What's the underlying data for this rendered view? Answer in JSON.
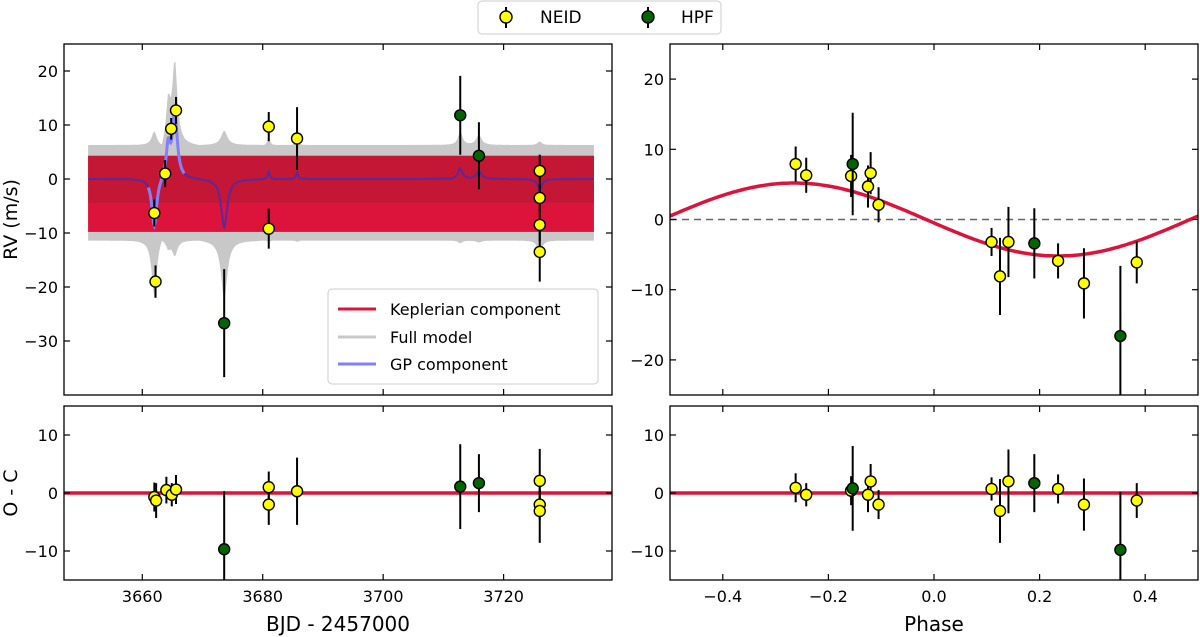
{
  "legend": {
    "items": [
      {
        "label": "NEID",
        "color": "#ffff00"
      },
      {
        "label": "HPF",
        "color": "#006400"
      }
    ]
  },
  "inner_legend": [
    "Keplerian component",
    "Full model",
    "GP component"
  ],
  "colors": {
    "keplerian": "#dc143c",
    "keplerian_band": "#b0172f",
    "full_model": "#c8c8c8",
    "gp": "#8080ff",
    "neid": "#ffff00",
    "hpf": "#006400",
    "zero_line": "#666666"
  },
  "chart_data": [
    {
      "id": "rv_time",
      "type": "scatter",
      "ylabel": "RV (m/s)",
      "xlabel": "",
      "xlim": [
        3647,
        3738
      ],
      "ylim": [
        -40,
        25
      ],
      "yticks": [
        -30,
        -20,
        -10,
        0,
        10,
        20
      ],
      "xticks": [
        3660,
        3680,
        3700,
        3720
      ],
      "show_xticklabels": false,
      "series": [
        {
          "name": "NEID",
          "points": [
            [
              3662,
              -6.3,
              2.5
            ],
            [
              3662.2,
              -19,
              3
            ],
            [
              3663.8,
              1,
              2.5
            ],
            [
              3664.8,
              9.3,
              2
            ],
            [
              3665.6,
              12.7,
              2.5
            ],
            [
              3681,
              9.7,
              2.7
            ],
            [
              3681,
              -9.2,
              3.7
            ],
            [
              3685.7,
              7.5,
              5.8
            ],
            [
              3726,
              1.5,
              3
            ],
            [
              3726,
              -3.5,
              2.5
            ],
            [
              3726,
              -8.5,
              3
            ],
            [
              3726,
              -13.5,
              5.5
            ]
          ]
        },
        {
          "name": "HPF",
          "points": [
            [
              3673.6,
              -26.7,
              10
            ],
            [
              3712.8,
              11.8,
              7.3
            ],
            [
              3715.9,
              4.3,
              6.2
            ]
          ]
        }
      ],
      "band": {
        "x": [
          3651,
          3735
        ],
        "y": [
          -9.8,
          4.3
        ]
      }
    },
    {
      "id": "rv_phase",
      "type": "scatter",
      "ylabel": "",
      "xlabel": "",
      "xlim": [
        -0.5,
        0.5
      ],
      "ylim": [
        -25,
        25
      ],
      "yticks": [
        -20,
        -10,
        0,
        10,
        20
      ],
      "xticks": [
        -0.4,
        -0.2,
        0.0,
        0.2,
        0.4
      ],
      "show_xticklabels": false,
      "model": {
        "amplitude": 5.2,
        "peak_phase": -0.265
      },
      "series": [
        {
          "name": "NEID",
          "points": [
            [
              -0.262,
              7.9,
              2.5
            ],
            [
              -0.242,
              6.3,
              2.5
            ],
            [
              -0.157,
              6.2,
              3
            ],
            [
              -0.125,
              4.7,
              3
            ],
            [
              -0.12,
              6.6,
              3
            ],
            [
              -0.105,
              2.1,
              2.5
            ],
            [
              0.109,
              -3.2,
              2
            ],
            [
              0.125,
              -8.1,
              5.5
            ],
            [
              0.141,
              -3.2,
              5
            ],
            [
              0.235,
              -5.9,
              2.5
            ],
            [
              0.284,
              -9.1,
              5
            ],
            [
              0.384,
              -6.1,
              3
            ]
          ]
        },
        {
          "name": "HPF",
          "points": [
            [
              -0.154,
              7.9,
              7.3
            ],
            [
              0.19,
              -3.4,
              5
            ],
            [
              0.353,
              -16.6,
              10
            ]
          ]
        }
      ]
    },
    {
      "id": "oc_time",
      "type": "scatter",
      "ylabel": "O - C",
      "xlabel": "BJD - 2457000",
      "xlim": [
        3647,
        3738
      ],
      "ylim": [
        -15,
        15
      ],
      "yticks": [
        -10,
        0,
        10
      ],
      "xticks": [
        3660,
        3680,
        3700,
        3720
      ],
      "show_xticklabels": true,
      "series": [
        {
          "name": "NEID",
          "points": [
            [
              3662,
              -0.7,
              2.5
            ],
            [
              3662.3,
              -1.3,
              3
            ],
            [
              3664,
              0.5,
              2.3
            ],
            [
              3664.9,
              -0.3,
              2
            ],
            [
              3665.6,
              0.6,
              2.5
            ],
            [
              3681,
              1.0,
              2.7
            ],
            [
              3681,
              -2.0,
              3.5
            ],
            [
              3685.7,
              0.3,
              5.8
            ],
            [
              3726,
              2.1,
              5.5
            ],
            [
              3726,
              -2.0,
              2.5
            ],
            [
              3726,
              -3.1,
              5.5
            ]
          ]
        },
        {
          "name": "HPF",
          "points": [
            [
              3673.6,
              -9.7,
              10
            ],
            [
              3712.8,
              1.1,
              7.3
            ],
            [
              3715.9,
              1.7,
              5
            ]
          ]
        }
      ]
    },
    {
      "id": "oc_phase",
      "type": "scatter",
      "ylabel": "",
      "xlabel": "Phase",
      "xlim": [
        -0.5,
        0.5
      ],
      "ylim": [
        -15,
        15
      ],
      "yticks": [
        -10,
        0,
        10
      ],
      "xticks": [
        -0.4,
        -0.2,
        0.0,
        0.2,
        0.4
      ],
      "show_xticklabels": true,
      "series": [
        {
          "name": "NEID",
          "points": [
            [
              -0.262,
              0.9,
              2.5
            ],
            [
              -0.242,
              -0.3,
              2
            ],
            [
              -0.157,
              0.4,
              2.5
            ],
            [
              -0.125,
              -0.3,
              3
            ],
            [
              -0.12,
              2.0,
              3
            ],
            [
              -0.105,
              -2.0,
              2.5
            ],
            [
              0.109,
              0.7,
              2
            ],
            [
              0.125,
              -3.1,
              5.5
            ],
            [
              0.141,
              2.0,
              5.5
            ],
            [
              0.235,
              0.7,
              2.5
            ],
            [
              0.284,
              -2.0,
              4.5
            ],
            [
              0.384,
              -1.3,
              3
            ]
          ]
        },
        {
          "name": "HPF",
          "points": [
            [
              -0.154,
              0.8,
              7.3
            ],
            [
              0.19,
              1.7,
              5
            ],
            [
              0.353,
              -9.8,
              10
            ]
          ]
        }
      ]
    }
  ]
}
